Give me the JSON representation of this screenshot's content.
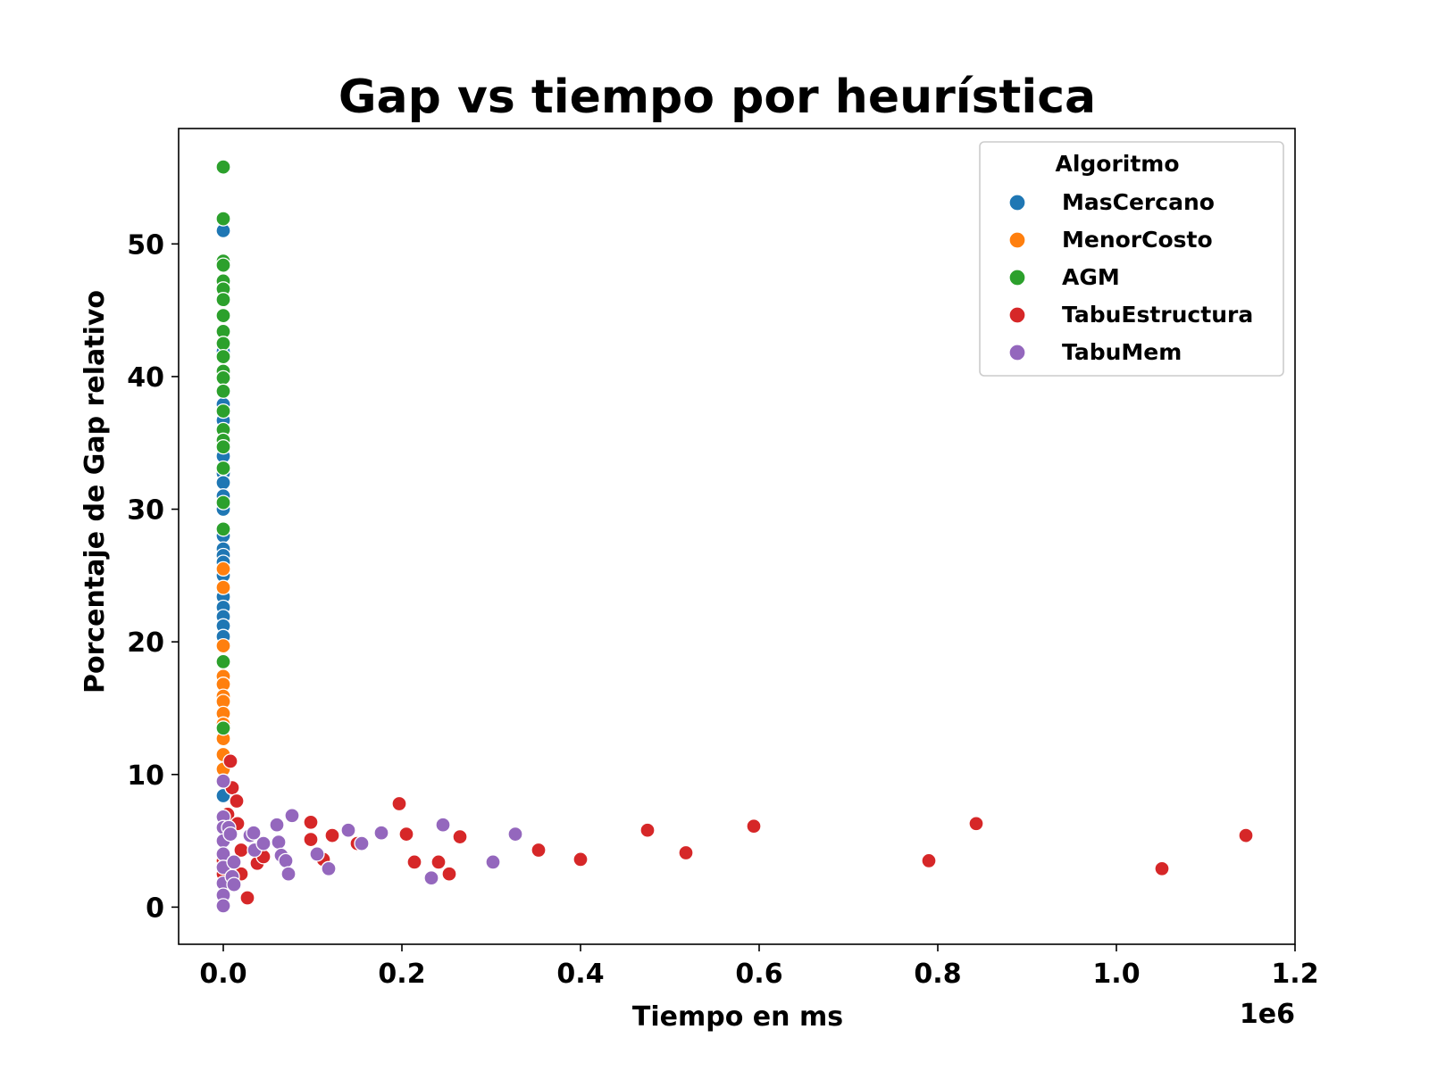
{
  "chart_data": {
    "type": "scatter",
    "title": "Gap vs tiempo por heurística",
    "xlabel": "Tiempo en ms",
    "ylabel": "Porcentaje de Gap relativo",
    "x_offset_label": "1e6",
    "xlim": [
      -0.05,
      1.2
    ],
    "ylim": [
      -2.8,
      58.7
    ],
    "x_ticks": [
      0.0,
      0.2,
      0.4,
      0.6,
      0.8,
      1.0,
      1.2
    ],
    "x_tick_labels": [
      "0.0",
      "0.2",
      "0.4",
      "0.6",
      "0.8",
      "1.0",
      "1.2"
    ],
    "y_ticks": [
      0,
      10,
      20,
      30,
      40,
      50
    ],
    "y_tick_labels": [
      "0",
      "10",
      "20",
      "30",
      "40",
      "50"
    ],
    "grid": false,
    "legend": {
      "title": "Algoritmo",
      "position": "top-right"
    },
    "series": [
      {
        "name": "MasCercano",
        "color": "#1f77b4",
        "points": [
          [
            0.0,
            51.0
          ],
          [
            0.0,
            41.9
          ],
          [
            0.0,
            37.9
          ],
          [
            0.0,
            36.7
          ],
          [
            0.0,
            34.0
          ],
          [
            0.0,
            32.7
          ],
          [
            0.0,
            32.0
          ],
          [
            0.0,
            31.0
          ],
          [
            0.0,
            30.0
          ],
          [
            0.0,
            28.0
          ],
          [
            0.0,
            27.0
          ],
          [
            0.0,
            26.5
          ],
          [
            0.0,
            26.0
          ],
          [
            0.0,
            25.0
          ],
          [
            0.0,
            23.4
          ],
          [
            0.0,
            22.6
          ],
          [
            0.0,
            21.9
          ],
          [
            0.0,
            21.2
          ],
          [
            0.0,
            20.4
          ],
          [
            0.0,
            8.4
          ]
        ]
      },
      {
        "name": "MenorCosto",
        "color": "#ff7f0e",
        "points": [
          [
            0.0,
            25.5
          ],
          [
            0.0,
            24.1
          ],
          [
            0.0,
            19.7
          ],
          [
            0.0,
            17.4
          ],
          [
            0.0,
            16.8
          ],
          [
            0.0,
            15.9
          ],
          [
            0.0,
            15.5
          ],
          [
            0.0,
            14.6
          ],
          [
            0.0,
            13.8
          ],
          [
            0.0,
            12.7
          ],
          [
            0.0,
            11.5
          ],
          [
            0.0,
            10.4
          ]
        ]
      },
      {
        "name": "AGM",
        "color": "#2ca02c",
        "points": [
          [
            0.0,
            55.8
          ],
          [
            0.0,
            51.9
          ],
          [
            0.0,
            48.7
          ],
          [
            0.0,
            48.4
          ],
          [
            0.0,
            47.2
          ],
          [
            0.0,
            46.6
          ],
          [
            0.0,
            45.8
          ],
          [
            0.0,
            44.6
          ],
          [
            0.0,
            43.4
          ],
          [
            0.0,
            42.5
          ],
          [
            0.0,
            41.5
          ],
          [
            0.0,
            40.4
          ],
          [
            0.0,
            39.9
          ],
          [
            0.0,
            38.9
          ],
          [
            0.0,
            37.4
          ],
          [
            0.0,
            36.0
          ],
          [
            0.0,
            35.2
          ],
          [
            0.0,
            34.7
          ],
          [
            0.0,
            33.1
          ],
          [
            0.0,
            30.5
          ],
          [
            0.0,
            28.5
          ],
          [
            0.0,
            18.5
          ],
          [
            0.0,
            13.5
          ]
        ]
      },
      {
        "name": "TabuEstructura",
        "color": "#d62728",
        "points": [
          [
            0.002,
            5.8
          ],
          [
            0.0,
            3.5
          ],
          [
            0.0,
            2.5
          ],
          [
            0.005,
            7.0
          ],
          [
            0.008,
            11.0
          ],
          [
            0.01,
            9.0
          ],
          [
            0.015,
            8.0
          ],
          [
            0.016,
            6.3
          ],
          [
            0.02,
            4.3
          ],
          [
            0.02,
            2.5
          ],
          [
            0.027,
            0.7
          ],
          [
            0.038,
            3.3
          ],
          [
            0.045,
            3.8
          ],
          [
            0.098,
            6.4
          ],
          [
            0.098,
            5.1
          ],
          [
            0.112,
            3.6
          ],
          [
            0.122,
            5.4
          ],
          [
            0.15,
            4.8
          ],
          [
            0.197,
            7.8
          ],
          [
            0.205,
            5.5
          ],
          [
            0.214,
            3.4
          ],
          [
            0.241,
            3.4
          ],
          [
            0.253,
            2.5
          ],
          [
            0.265,
            5.3
          ],
          [
            0.353,
            4.3
          ],
          [
            0.4,
            3.6
          ],
          [
            0.475,
            5.8
          ],
          [
            0.518,
            4.1
          ],
          [
            0.594,
            6.1
          ],
          [
            0.79,
            3.5
          ],
          [
            0.843,
            6.3
          ],
          [
            1.051,
            2.9
          ],
          [
            1.145,
            5.4
          ]
        ]
      },
      {
        "name": "TabuMem",
        "color": "#9467bd",
        "points": [
          [
            0.0,
            9.5
          ],
          [
            0.0,
            6.8
          ],
          [
            0.0,
            6.0
          ],
          [
            0.0,
            5.0
          ],
          [
            0.0,
            4.0
          ],
          [
            0.0,
            3.0
          ],
          [
            0.0,
            1.8
          ],
          [
            0.0,
            0.9
          ],
          [
            0.0,
            0.1
          ],
          [
            0.006,
            6.0
          ],
          [
            0.008,
            5.5
          ],
          [
            0.01,
            2.3
          ],
          [
            0.012,
            1.7
          ],
          [
            0.012,
            3.4
          ],
          [
            0.03,
            5.4
          ],
          [
            0.034,
            5.6
          ],
          [
            0.035,
            4.3
          ],
          [
            0.045,
            4.8
          ],
          [
            0.06,
            6.2
          ],
          [
            0.062,
            4.9
          ],
          [
            0.065,
            3.9
          ],
          [
            0.07,
            3.5
          ],
          [
            0.073,
            2.5
          ],
          [
            0.077,
            6.9
          ],
          [
            0.105,
            4.0
          ],
          [
            0.118,
            2.9
          ],
          [
            0.14,
            5.8
          ],
          [
            0.155,
            4.8
          ],
          [
            0.177,
            5.6
          ],
          [
            0.233,
            2.2
          ],
          [
            0.246,
            6.2
          ],
          [
            0.302,
            3.4
          ],
          [
            0.327,
            5.5
          ]
        ]
      }
    ]
  }
}
